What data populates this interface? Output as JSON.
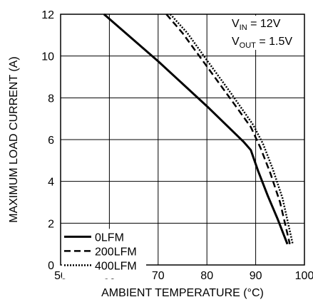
{
  "chart_data": {
    "type": "line",
    "xlabel": "AMBIENT TEMPERATURE (°C)",
    "ylabel": "MAXIMUM LOAD CURRENT (A)",
    "xlim": [
      50,
      100
    ],
    "ylim": [
      0,
      12
    ],
    "x_ticks": [
      "50",
      "60",
      "70",
      "80",
      "90",
      "100"
    ],
    "y_ticks": [
      "0",
      "2",
      "4",
      "6",
      "8",
      "10",
      "12"
    ],
    "grid": true,
    "legend_position": "bottom-left",
    "annotation": {
      "line1": {
        "main": "V",
        "sub": "IN",
        "rest": " = 12V"
      },
      "line2": {
        "main": "V",
        "sub": "OUT",
        "rest": " = 1.5V"
      },
      "position": "top-right"
    },
    "series": [
      {
        "name": "0LFM",
        "style": "solid",
        "points": [
          [
            58.9,
            12
          ],
          [
            70,
            9.75
          ],
          [
            80,
            7.6
          ],
          [
            87.5,
            5.9
          ],
          [
            89,
            5.5
          ],
          [
            90.5,
            4.5
          ],
          [
            92.5,
            3.3
          ],
          [
            94.5,
            2.2
          ],
          [
            96.5,
            1.0
          ]
        ]
      },
      {
        "name": "200LFM",
        "style": "dashed",
        "points": [
          [
            71.7,
            12
          ],
          [
            75,
            11.1
          ],
          [
            80,
            9.5
          ],
          [
            85,
            7.9
          ],
          [
            89,
            6.6
          ],
          [
            91,
            5.6
          ],
          [
            93,
            4.4
          ],
          [
            95,
            3.0
          ],
          [
            97,
            1.0
          ]
        ]
      },
      {
        "name": "400LFM",
        "style": "dotted",
        "points": [
          [
            72.5,
            12
          ],
          [
            76,
            11.1
          ],
          [
            80,
            9.8
          ],
          [
            85,
            8.2
          ],
          [
            89.5,
            6.7
          ],
          [
            91.5,
            5.8
          ],
          [
            93.5,
            4.6
          ],
          [
            95.5,
            3.2
          ],
          [
            97.6,
            1.0
          ]
        ]
      }
    ]
  }
}
